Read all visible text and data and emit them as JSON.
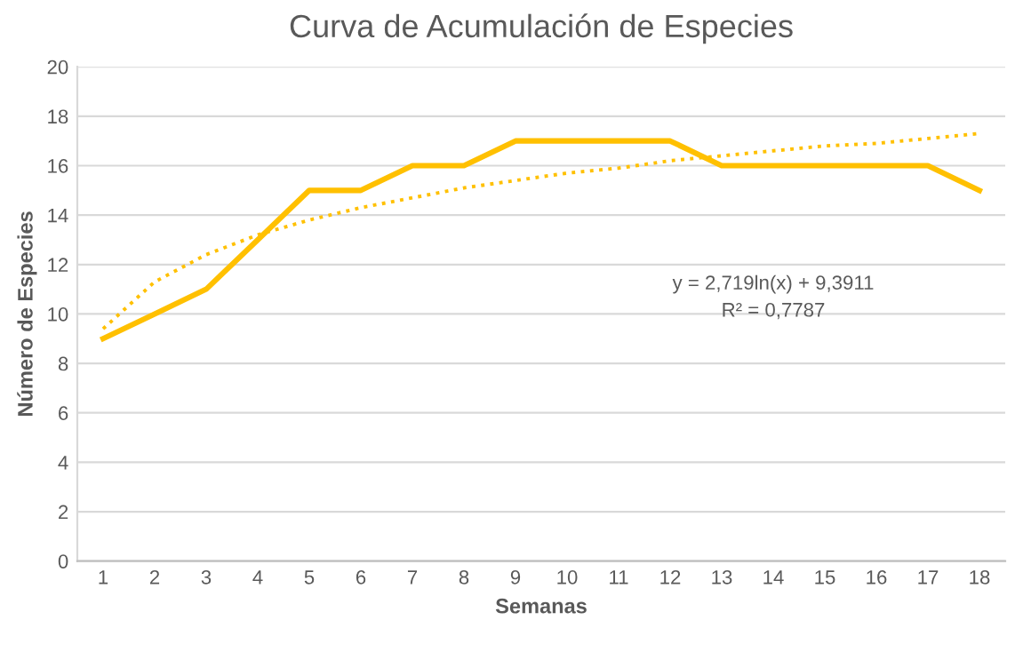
{
  "chart_data": {
    "type": "line",
    "title": "Curva de Acumulación de Especies",
    "xlabel": "Semanas",
    "ylabel": "Número de Especies",
    "categories": [
      "1",
      "2",
      "3",
      "4",
      "5",
      "6",
      "7",
      "8",
      "9",
      "10",
      "11",
      "12",
      "13",
      "14",
      "15",
      "16",
      "17",
      "18"
    ],
    "series": [
      {
        "color": "#ffc000",
        "values": [
          9,
          10,
          11,
          13,
          15,
          15,
          16,
          16,
          17,
          17,
          17,
          17,
          16,
          16,
          16,
          16,
          16,
          15
        ]
      },
      {
        "type": "line",
        "line_style": "dotted",
        "color": "#ffc000",
        "values": [
          9.4,
          11.3,
          12.4,
          13.2,
          13.8,
          14.3,
          14.7,
          15.1,
          15.4,
          15.7,
          15.9,
          16.2,
          16.4,
          16.6,
          16.8,
          16.9,
          17.1,
          17.3
        ]
      }
    ],
    "annotations": [
      "y = 2,719ln(x) + 9,3911",
      "R² = 0,7787"
    ],
    "ylim": [
      0,
      20
    ],
    "yticks": [
      0,
      2,
      4,
      6,
      8,
      10,
      12,
      14,
      16,
      18,
      20
    ],
    "grid": "y",
    "legend": false,
    "marker": "none",
    "line_style": "solid"
  }
}
